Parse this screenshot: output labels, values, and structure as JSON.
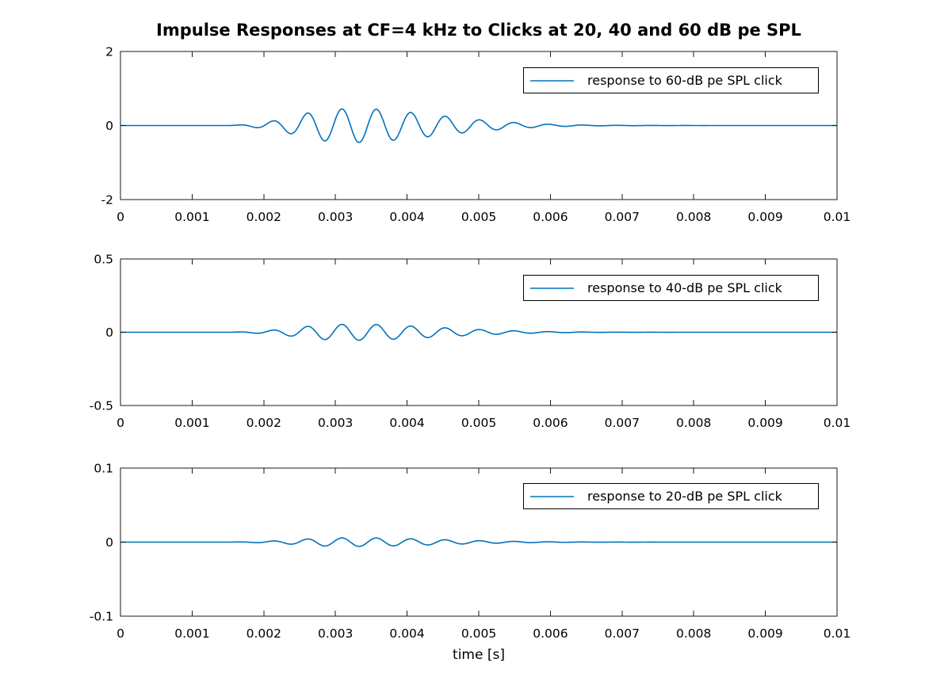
{
  "figure": {
    "title": "Impulse Responses at CF=4 kHz to Clicks at 20, 40 and 60 dB pe SPL",
    "xlabel": "time [s]",
    "line_color": "#0072BD",
    "axis_color": "#1a1a1a",
    "text_color": "#000000",
    "background": "#ffffff"
  },
  "chart_data": [
    {
      "type": "line",
      "legend": "response to 60-dB pe SPL click",
      "legend_position": "upper right",
      "grid": false,
      "xlim": [
        0,
        0.01
      ],
      "ylim": [
        -2,
        2
      ],
      "xtick_values": [
        0,
        0.001,
        0.002,
        0.003,
        0.004,
        0.005,
        0.006,
        0.007,
        0.008,
        0.009,
        0.01
      ],
      "xtick_labels": [
        "0",
        "0.001",
        "0.002",
        "0.003",
        "0.004",
        "0.005",
        "0.006",
        "0.007",
        "0.008",
        "0.009",
        "0.01"
      ],
      "ytick_values": [
        2,
        0,
        -2
      ],
      "ytick_labels": [
        "2",
        "0",
        "-2"
      ],
      "signal": {
        "kind": "click-evoked impulse response, amplitude-modulated tone burst (flat zero elsewhere)",
        "carrier_hz": 2080,
        "carrier_peak_time_s": 0.00309,
        "peak_amplitude": 0.46,
        "envelope_time_ms": [
          0,
          1.5,
          1.6,
          1.8,
          2.0,
          2.2,
          2.4,
          2.6,
          2.8,
          3.0,
          3.3,
          3.6,
          3.9,
          4.2,
          4.5,
          4.8,
          5.1,
          5.4,
          5.7,
          6.0,
          6.3,
          6.6,
          7.0,
          7.5,
          8.0,
          9.0,
          10.0
        ],
        "envelope_relative": [
          0,
          0,
          0.02,
          0.07,
          0.18,
          0.32,
          0.5,
          0.72,
          0.88,
          0.96,
          1.0,
          0.95,
          0.83,
          0.7,
          0.56,
          0.42,
          0.3,
          0.2,
          0.125,
          0.07,
          0.04,
          0.02,
          0.009,
          0.003,
          0.001,
          0,
          0
        ]
      }
    },
    {
      "type": "line",
      "legend": "response to 40-dB pe SPL click",
      "legend_position": "upper right",
      "grid": false,
      "xlim": [
        0,
        0.01
      ],
      "ylim": [
        -0.5,
        0.5
      ],
      "xtick_values": [
        0,
        0.001,
        0.002,
        0.003,
        0.004,
        0.005,
        0.006,
        0.007,
        0.008,
        0.009,
        0.01
      ],
      "xtick_labels": [
        "0",
        "0.001",
        "0.002",
        "0.003",
        "0.004",
        "0.005",
        "0.006",
        "0.007",
        "0.008",
        "0.009",
        "0.01"
      ],
      "ytick_values": [
        0.5,
        0,
        -0.5
      ],
      "ytick_labels": [
        "0.5",
        "0",
        "-0.5"
      ],
      "signal": {
        "kind": "click-evoked impulse response, amplitude-modulated tone burst (flat zero elsewhere)",
        "carrier_hz": 2080,
        "carrier_peak_time_s": 0.00309,
        "peak_amplitude": 0.055,
        "envelope_time_ms": [
          0,
          1.5,
          1.6,
          1.8,
          2.0,
          2.2,
          2.4,
          2.6,
          2.8,
          3.0,
          3.3,
          3.6,
          3.9,
          4.2,
          4.5,
          4.8,
          5.1,
          5.4,
          5.7,
          6.0,
          6.3,
          6.6,
          7.0,
          7.5,
          8.0,
          9.0,
          10.0
        ],
        "envelope_relative": [
          0,
          0,
          0.02,
          0.07,
          0.18,
          0.32,
          0.5,
          0.72,
          0.88,
          0.96,
          1.0,
          0.95,
          0.83,
          0.7,
          0.56,
          0.42,
          0.3,
          0.2,
          0.125,
          0.07,
          0.04,
          0.02,
          0.009,
          0.003,
          0.001,
          0,
          0
        ]
      }
    },
    {
      "type": "line",
      "legend": "response to 20-dB pe SPL click",
      "legend_position": "upper right",
      "grid": false,
      "xlim": [
        0,
        0.01
      ],
      "ylim": [
        -0.1,
        0.1
      ],
      "xtick_values": [
        0,
        0.001,
        0.002,
        0.003,
        0.004,
        0.005,
        0.006,
        0.007,
        0.008,
        0.009,
        0.01
      ],
      "xtick_labels": [
        "0",
        "0.001",
        "0.002",
        "0.003",
        "0.004",
        "0.005",
        "0.006",
        "0.007",
        "0.008",
        "0.009",
        "0.01"
      ],
      "ytick_values": [
        0.1,
        0,
        -0.1
      ],
      "ytick_labels": [
        "0.1",
        "0",
        "-0.1"
      ],
      "signal": {
        "kind": "click-evoked impulse response, amplitude-modulated tone burst (flat zero elsewhere)",
        "carrier_hz": 2080,
        "carrier_peak_time_s": 0.00309,
        "peak_amplitude": 0.0058,
        "envelope_time_ms": [
          0,
          1.5,
          1.6,
          1.8,
          2.0,
          2.2,
          2.4,
          2.6,
          2.8,
          3.0,
          3.3,
          3.6,
          3.9,
          4.2,
          4.5,
          4.8,
          5.1,
          5.4,
          5.7,
          6.0,
          6.3,
          6.6,
          7.0,
          7.5,
          8.0,
          9.0,
          10.0
        ],
        "envelope_relative": [
          0,
          0,
          0.02,
          0.07,
          0.18,
          0.32,
          0.5,
          0.72,
          0.88,
          0.96,
          1.0,
          0.95,
          0.83,
          0.7,
          0.56,
          0.42,
          0.3,
          0.2,
          0.125,
          0.07,
          0.04,
          0.02,
          0.009,
          0.003,
          0.001,
          0,
          0
        ]
      }
    }
  ]
}
